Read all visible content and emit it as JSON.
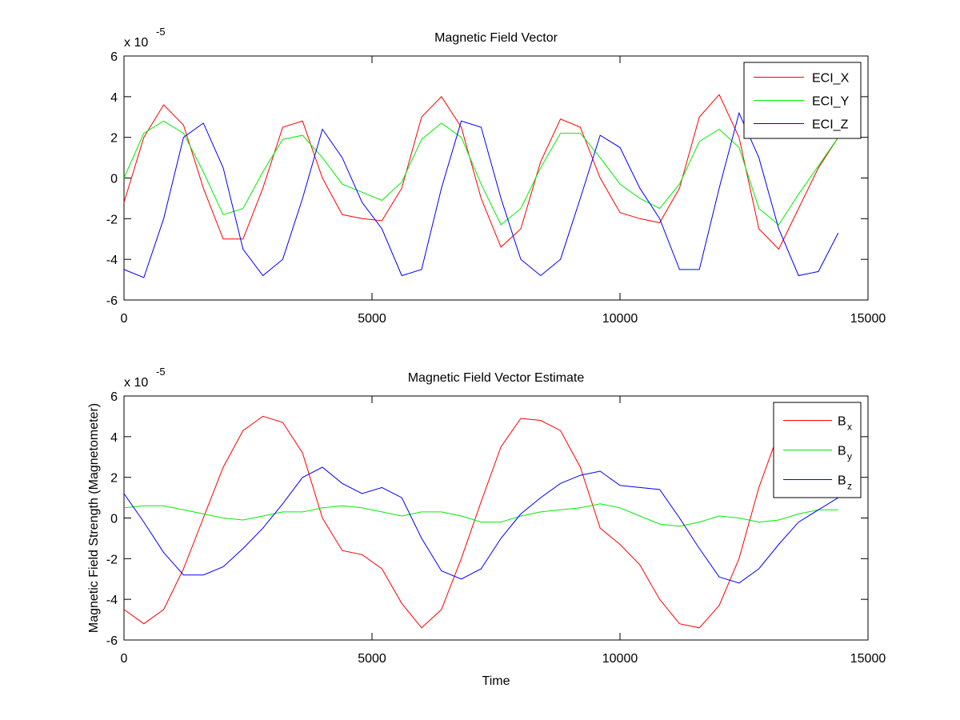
{
  "chart_data": [
    {
      "type": "line",
      "title": "Magnetic Field Vector",
      "exponent_label": "x 10",
      "exponent": "-5",
      "x": [
        0,
        400,
        800,
        1200,
        1600,
        2000,
        2400,
        2800,
        3200,
        3600,
        4000,
        4400,
        4800,
        5200,
        5600,
        6000,
        6400,
        6800,
        7200,
        7600,
        8000,
        8400,
        8800,
        9200,
        9600,
        10000,
        10400,
        10800,
        11200,
        11600,
        12000,
        12400,
        12800,
        13200,
        13600,
        14000,
        14400
      ],
      "series": [
        {
          "name": "ECI_X",
          "color": "#ff0000",
          "values": [
            -1.2,
            2.0,
            3.6,
            2.6,
            -0.5,
            -3.0,
            -3.0,
            -0.5,
            2.5,
            2.8,
            0,
            -1.8,
            -2.0,
            -2.1,
            -0.5,
            3.0,
            4.0,
            2.5,
            -1.0,
            -3.4,
            -2.5,
            0.8,
            2.9,
            2.5,
            0.0,
            -1.7,
            -2.0,
            -2.2,
            -0.5,
            3.0,
            4.1,
            2.0,
            -2.5,
            -3.5,
            -1.5,
            0.5,
            2.0
          ]
        },
        {
          "name": "ECI_Y",
          "color": "#00ee00",
          "values": [
            0,
            2.2,
            2.8,
            2.2,
            0.3,
            -1.8,
            -1.5,
            0.3,
            1.9,
            2.1,
            1.0,
            -0.3,
            -0.7,
            -1.1,
            -0.2,
            1.9,
            2.7,
            2.0,
            -0.3,
            -2.3,
            -1.5,
            0.5,
            2.2,
            2.2,
            1.0,
            -0.3,
            -1.0,
            -1.5,
            -0.3,
            1.8,
            2.4,
            1.5,
            -1.5,
            -2.3,
            -0.8,
            0.6,
            2.0
          ]
        },
        {
          "name": "ECI_Z",
          "color": "#0000ff",
          "values": [
            -4.5,
            -4.9,
            -2.0,
            2.0,
            2.7,
            0.5,
            -3.5,
            -4.8,
            -4.0,
            -1.0,
            2.4,
            1.0,
            -1.2,
            -2.5,
            -4.8,
            -4.5,
            -0.5,
            2.8,
            2.5,
            -1.0,
            -4.0,
            -4.8,
            -4.0,
            -1.0,
            2.1,
            1.5,
            -0.5,
            -2.0,
            -4.5,
            -4.5,
            -0.5,
            3.2,
            1.0,
            -2.5,
            -4.8,
            -4.6,
            -2.7
          ]
        }
      ],
      "xlim": [
        0,
        15000
      ],
      "xticks": [
        0,
        5000,
        10000,
        15000
      ],
      "ylim": [
        -6,
        6
      ],
      "yticks": [
        -6,
        -4,
        -2,
        0,
        2,
        4,
        6
      ],
      "legend": "upper right"
    },
    {
      "type": "line",
      "title": "Magnetic Field Vector Estimate",
      "exponent_label": "x 10",
      "exponent": "-5",
      "x_label": "Time",
      "y_label": "Magnetic Field Strength (Magnetometer)",
      "x": [
        0,
        400,
        800,
        1200,
        1600,
        2000,
        2400,
        2800,
        3200,
        3600,
        4000,
        4400,
        4800,
        5200,
        5600,
        6000,
        6400,
        6800,
        7200,
        7600,
        8000,
        8400,
        8800,
        9200,
        9600,
        10000,
        10400,
        10800,
        11200,
        11600,
        12000,
        12400,
        12800,
        13200,
        13600,
        14000,
        14400
      ],
      "series": [
        {
          "name": "B",
          "name_subscript": "x",
          "color": "#ff0000",
          "values": [
            -4.5,
            -5.2,
            -4.5,
            -2.5,
            0,
            2.5,
            4.3,
            5.0,
            4.7,
            3.2,
            0,
            -1.6,
            -1.8,
            -2.5,
            -4.2,
            -5.4,
            -4.5,
            -2.0,
            0.8,
            3.5,
            4.9,
            4.8,
            4.3,
            2.5,
            -0.5,
            -1.3,
            -2.3,
            -4.0,
            -5.2,
            -5.4,
            -4.3,
            -2.0,
            1.5,
            4.2,
            5.0,
            4.8,
            4.5
          ]
        },
        {
          "name": "B",
          "name_subscript": "y",
          "color": "#00ee00",
          "values": [
            0.5,
            0.6,
            0.6,
            0.4,
            0.2,
            0,
            -0.1,
            0.1,
            0.3,
            0.3,
            0.5,
            0.6,
            0.5,
            0.3,
            0.1,
            0.3,
            0.3,
            0.1,
            -0.2,
            -0.2,
            0.1,
            0.3,
            0.4,
            0.5,
            0.7,
            0.5,
            0.1,
            -0.3,
            -0.4,
            -0.2,
            0.1,
            0.0,
            -0.2,
            -0.1,
            0.2,
            0.4,
            0.4
          ]
        },
        {
          "name": "B",
          "name_subscript": "z",
          "color": "#0000ff",
          "values": [
            1.2,
            -0.2,
            -1.7,
            -2.8,
            -2.8,
            -2.4,
            -1.5,
            -0.5,
            0.7,
            2.0,
            2.5,
            1.7,
            1.2,
            1.5,
            1.0,
            -1.0,
            -2.6,
            -3.0,
            -2.5,
            -1.0,
            0.2,
            1.0,
            1.7,
            2.1,
            2.3,
            1.6,
            1.5,
            1.4,
            0,
            -1.5,
            -2.9,
            -3.2,
            -2.5,
            -1.3,
            -0.2,
            0.4,
            1.0
          ]
        }
      ],
      "xlim": [
        0,
        15000
      ],
      "xticks": [
        0,
        5000,
        10000,
        15000
      ],
      "ylim": [
        -6,
        6
      ],
      "yticks": [
        -6,
        -4,
        -2,
        0,
        2,
        4,
        6
      ],
      "legend": "upper right"
    }
  ]
}
